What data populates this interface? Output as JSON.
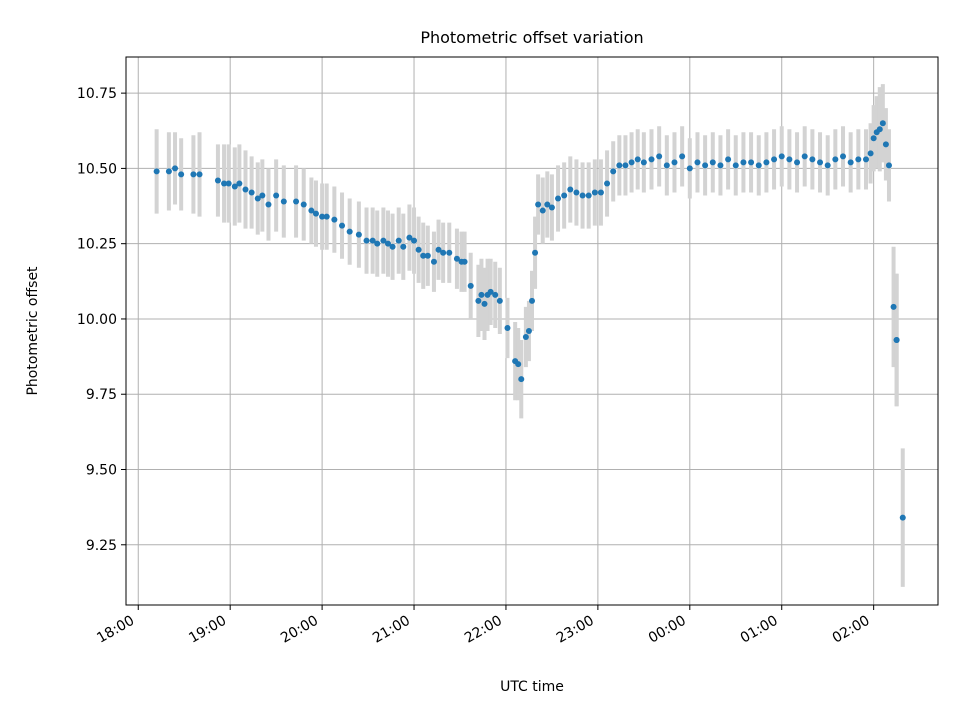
{
  "chart_data": {
    "type": "scatter",
    "title": "Photometric offset variation",
    "xlabel": "UTC time",
    "ylabel": "Photometric offset",
    "x_ticks": [
      "18:00",
      "19:00",
      "20:00",
      "21:00",
      "22:00",
      "23:00",
      "00:00",
      "01:00",
      "02:00"
    ],
    "y_ticks": [
      "9.25",
      "9.50",
      "9.75",
      "10.00",
      "10.25",
      "10.50",
      "10.75"
    ],
    "xlim": [
      "17:52",
      "02:42"
    ],
    "ylim": [
      9.05,
      10.87
    ],
    "grid": true,
    "errorbar_color": "#d3d3d3",
    "point_color": "#1f77b4",
    "x": [
      "18:12",
      "18:20",
      "18:24",
      "18:28",
      "18:36",
      "18:40",
      "18:52",
      "18:56",
      "18:59",
      "19:03",
      "19:06",
      "19:10",
      "19:14",
      "19:18",
      "19:21",
      "19:25",
      "19:30",
      "19:35",
      "19:43",
      "19:48",
      "19:53",
      "19:56",
      "20:00",
      "20:03",
      "20:08",
      "20:13",
      "20:18",
      "20:24",
      "20:29",
      "20:33",
      "20:36",
      "20:40",
      "20:43",
      "20:46",
      "20:50",
      "20:53",
      "20:57",
      "21:00",
      "21:03",
      "21:06",
      "21:09",
      "21:13",
      "21:16",
      "21:19",
      "21:23",
      "21:28",
      "21:31",
      "21:33",
      "21:37",
      "21:42",
      "21:44",
      "21:46",
      "21:48",
      "21:50",
      "21:53",
      "21:56",
      "22:01",
      "22:06",
      "22:08",
      "22:10",
      "22:13",
      "22:15",
      "22:17",
      "22:19",
      "22:21",
      "22:24",
      "22:27",
      "22:30",
      "22:34",
      "22:38",
      "22:42",
      "22:46",
      "22:50",
      "22:54",
      "22:58",
      "23:02",
      "23:06",
      "23:10",
      "23:14",
      "23:18",
      "23:22",
      "23:26",
      "23:30",
      "23:35",
      "23:40",
      "23:45",
      "23:50",
      "23:55",
      "00:00",
      "00:05",
      "00:10",
      "00:15",
      "00:20",
      "00:25",
      "00:30",
      "00:35",
      "00:40",
      "00:45",
      "00:50",
      "00:55",
      "01:00",
      "01:05",
      "01:10",
      "01:15",
      "01:20",
      "01:25",
      "01:30",
      "01:35",
      "01:40",
      "01:45",
      "01:50",
      "01:55",
      "01:58",
      "02:00",
      "02:02",
      "02:04",
      "02:06",
      "02:08",
      "02:10",
      "02:13",
      "02:15",
      "02:15",
      "02:19"
    ],
    "y": [
      10.49,
      10.49,
      10.5,
      10.48,
      10.48,
      10.48,
      10.46,
      10.45,
      10.45,
      10.44,
      10.45,
      10.43,
      10.42,
      10.4,
      10.41,
      10.38,
      10.41,
      10.39,
      10.39,
      10.38,
      10.36,
      10.35,
      10.34,
      10.34,
      10.33,
      10.31,
      10.29,
      10.28,
      10.26,
      10.26,
      10.25,
      10.26,
      10.25,
      10.24,
      10.26,
      10.24,
      10.27,
      10.26,
      10.23,
      10.21,
      10.21,
      10.19,
      10.23,
      10.22,
      10.22,
      10.2,
      10.19,
      10.19,
      10.11,
      10.06,
      10.08,
      10.05,
      10.08,
      10.09,
      10.08,
      10.06,
      9.97,
      9.86,
      9.85,
      9.8,
      9.94,
      9.96,
      10.06,
      10.22,
      10.38,
      10.36,
      10.38,
      10.37,
      10.4,
      10.41,
      10.43,
      10.42,
      10.41,
      10.41,
      10.42,
      10.42,
      10.45,
      10.49,
      10.51,
      10.51,
      10.52,
      10.53,
      10.52,
      10.53,
      10.54,
      10.51,
      10.52,
      10.54,
      10.5,
      10.52,
      10.51,
      10.52,
      10.51,
      10.53,
      10.51,
      10.52,
      10.52,
      10.51,
      10.52,
      10.53,
      10.54,
      10.53,
      10.52,
      10.54,
      10.53,
      10.52,
      10.51,
      10.53,
      10.54,
      10.52,
      10.53,
      10.53,
      10.55,
      10.6,
      10.62,
      10.63,
      10.65,
      10.58,
      10.51,
      10.04,
      9.93,
      9.93,
      9.34
    ],
    "yerr": [
      0.14,
      0.13,
      0.12,
      0.12,
      0.13,
      0.14,
      0.12,
      0.13,
      0.13,
      0.13,
      0.13,
      0.13,
      0.12,
      0.12,
      0.12,
      0.12,
      0.12,
      0.12,
      0.12,
      0.12,
      0.11,
      0.11,
      0.11,
      0.11,
      0.11,
      0.11,
      0.11,
      0.11,
      0.11,
      0.11,
      0.11,
      0.11,
      0.11,
      0.11,
      0.11,
      0.11,
      0.11,
      0.11,
      0.11,
      0.11,
      0.1,
      0.1,
      0.1,
      0.1,
      0.1,
      0.1,
      0.1,
      0.1,
      0.11,
      0.12,
      0.12,
      0.12,
      0.12,
      0.11,
      0.11,
      0.11,
      0.1,
      0.13,
      0.12,
      0.13,
      0.1,
      0.1,
      0.1,
      0.12,
      0.1,
      0.11,
      0.11,
      0.11,
      0.11,
      0.11,
      0.11,
      0.11,
      0.11,
      0.11,
      0.11,
      0.11,
      0.11,
      0.1,
      0.1,
      0.1,
      0.1,
      0.1,
      0.1,
      0.1,
      0.1,
      0.1,
      0.1,
      0.1,
      0.1,
      0.1,
      0.1,
      0.1,
      0.1,
      0.1,
      0.1,
      0.1,
      0.1,
      0.1,
      0.1,
      0.1,
      0.1,
      0.1,
      0.1,
      0.1,
      0.1,
      0.1,
      0.1,
      0.1,
      0.1,
      0.1,
      0.1,
      0.1,
      0.1,
      0.11,
      0.12,
      0.14,
      0.13,
      0.12,
      0.12,
      0.2,
      0.22,
      0.22,
      0.23
    ]
  }
}
